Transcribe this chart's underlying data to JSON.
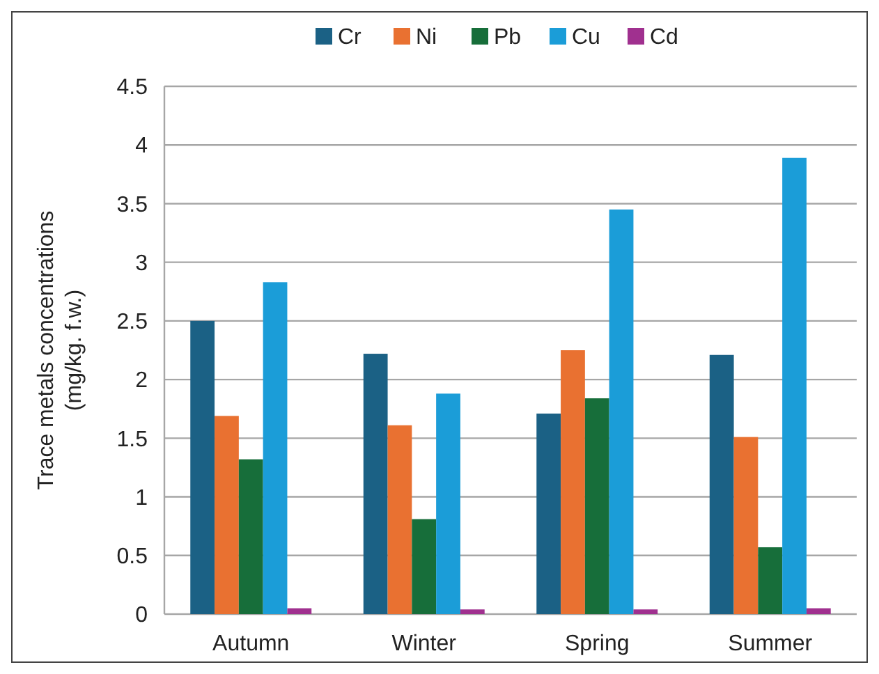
{
  "chart_data": {
    "type": "bar",
    "ylabel": "Trace metals concentrations\n(mg/kg. f.w.)",
    "categories": [
      "Autumn",
      "Winter",
      "Spring",
      "Summer"
    ],
    "series": [
      {
        "name": "Cr",
        "color": "#1b6185",
        "values": [
          2.5,
          2.22,
          1.71,
          2.21
        ]
      },
      {
        "name": "Ni",
        "color": "#e97131",
        "values": [
          1.69,
          1.61,
          2.25,
          1.51
        ]
      },
      {
        "name": "Pb",
        "color": "#176e3a",
        "values": [
          1.32,
          0.81,
          1.84,
          0.57
        ]
      },
      {
        "name": "Cu",
        "color": "#1b9dd8",
        "values": [
          2.83,
          1.88,
          3.45,
          3.89
        ]
      },
      {
        "name": "Cd",
        "color": "#a0308f",
        "values": [
          0.05,
          0.04,
          0.04,
          0.05
        ]
      }
    ],
    "ylim": [
      0,
      4.5
    ],
    "yticks": [
      0,
      0.5,
      1,
      1.5,
      2,
      2.5,
      3,
      3.5,
      4,
      4.5
    ],
    "grid": "y",
    "legend": "top"
  }
}
